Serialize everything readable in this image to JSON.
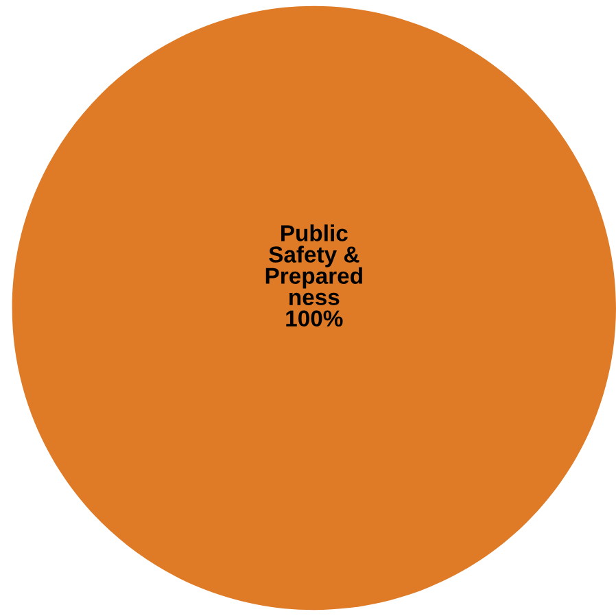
{
  "chart_data": {
    "type": "pie",
    "categories": [
      "Public\nSafety &\nPrepared\nness"
    ],
    "values": [
      100
    ],
    "colors": [
      "#df7a26"
    ],
    "value_labels": [
      "100%"
    ],
    "legend": false
  }
}
